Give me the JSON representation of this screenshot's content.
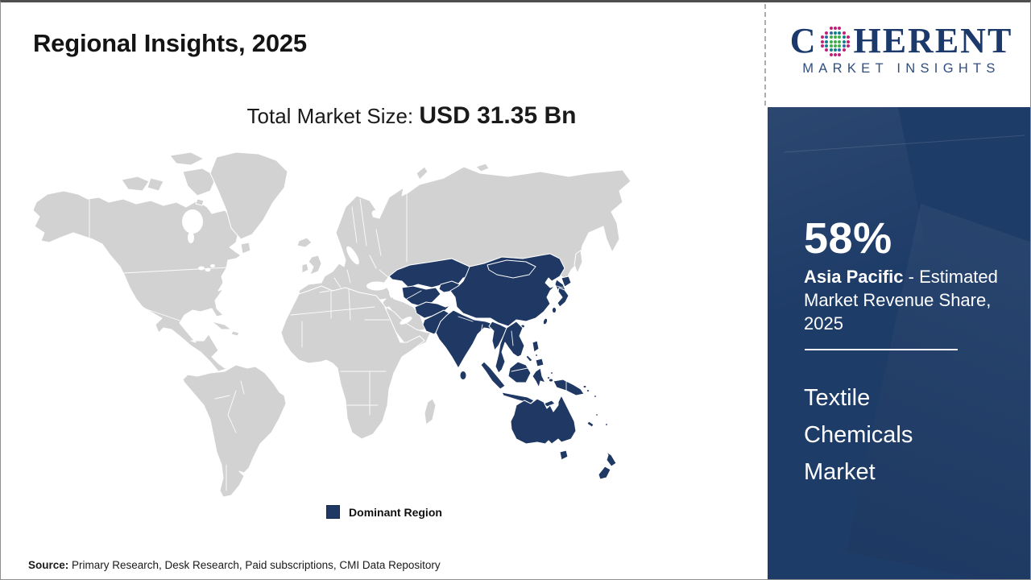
{
  "slide": {
    "title": "Regional Insights, 2025",
    "subtitle_label": "Total Market Size: ",
    "subtitle_value": "USD 31.35 Bn",
    "legend_label": "Dominant Region",
    "source_label": "Source:",
    "source_text": " Primary Research, Desk Research, Paid subscriptions, CMI Data Repository"
  },
  "map": {
    "type": "world-choropleth",
    "dominant_region": "Asia Pacific",
    "highlighted_share_percent": 58,
    "colors": {
      "land": "#d2d2d2",
      "highlight": "#1f3864",
      "border": "#ffffff"
    }
  },
  "sidebar": {
    "stat_value": "58%",
    "region_name": "Asia Pacific",
    "stat_desc": " - Estimated Market Revenue Share, 2025",
    "market_name": "Textile Chemicals Market",
    "background": "#1e3c68"
  },
  "logo": {
    "brand_prefix": "C",
    "brand_suffix": "HERENT",
    "brand_subtitle": "MARKET INSIGHTS",
    "navy": "#1b3a6b",
    "dot_colors": {
      "inner": "#3fae49",
      "mid_a": "#117f8d",
      "mid_b": "#2c69a8",
      "outer": "#c02079"
    }
  }
}
